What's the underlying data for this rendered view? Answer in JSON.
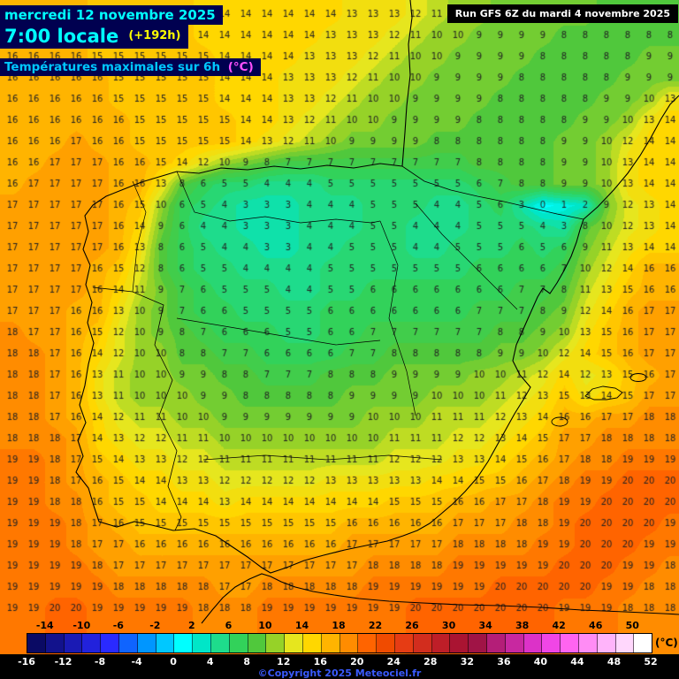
{
  "header": {
    "date": "mercredi 12 novembre 2025",
    "time": "7:00 locale",
    "forecast_offset": "(+192h)",
    "title": "Températures maximales sur 6h",
    "title_unit": "(°C)",
    "run": "Run GFS 6Z du mardi 4 novembre 2025"
  },
  "footer": {
    "copyright": "©Copyright 2025 Meteociel.fr",
    "unit": "(°C)"
  },
  "scale": {
    "min": -16,
    "max": 52,
    "step": 2,
    "top_labels": [
      -14,
      -10,
      -6,
      -2,
      2,
      6,
      10,
      14,
      18,
      22,
      26,
      30,
      34,
      38,
      42,
      46,
      50
    ],
    "bottom_labels": [
      -16,
      -12,
      -8,
      -4,
      0,
      4,
      8,
      12,
      16,
      20,
      24,
      28,
      32,
      36,
      40,
      44,
      48,
      52
    ],
    "colors": [
      "#0a0a64",
      "#12128c",
      "#1a1ab4",
      "#2222dc",
      "#2a2aff",
      "#0f64ff",
      "#0096ff",
      "#00c8ff",
      "#00ffff",
      "#00e6c8",
      "#1edc8c",
      "#32d25a",
      "#50c83c",
      "#96d228",
      "#e6e61e",
      "#ffd700",
      "#ffb400",
      "#ff8c00",
      "#ff6400",
      "#f04b00",
      "#e63c14",
      "#d22d1e",
      "#be1e28",
      "#aa1432",
      "#a01446",
      "#b41e78",
      "#c828a0",
      "#dc32c8",
      "#f046e6",
      "#ff64f0",
      "#ff8cf5",
      "#ffb4fa",
      "#ffd7fc",
      "#ffffff"
    ]
  },
  "chart_data": {
    "type": "heatmap",
    "title": "Températures maximales sur 6h (°C)",
    "unit": "°C",
    "grid_origin": [
      14,
      16
    ],
    "grid_spacing": [
      24,
      24
    ],
    "number_color": "#222222",
    "values": [
      [
        16,
        16,
        16,
        16,
        15,
        15,
        15,
        15,
        15,
        14,
        14,
        14,
        14,
        14,
        14,
        14,
        13,
        13,
        13,
        12,
        11,
        10,
        10,
        9,
        9,
        9,
        9,
        9,
        8,
        8,
        8,
        8
      ],
      [
        16,
        16,
        16,
        16,
        15,
        15,
        15,
        15,
        15,
        14,
        14,
        14,
        14,
        14,
        14,
        13,
        13,
        13,
        12,
        11,
        10,
        10,
        9,
        9,
        9,
        9,
        8,
        8,
        8,
        8,
        8,
        8
      ],
      [
        16,
        16,
        16,
        16,
        15,
        15,
        15,
        15,
        15,
        15,
        14,
        14,
        14,
        14,
        13,
        13,
        13,
        12,
        11,
        10,
        10,
        9,
        9,
        9,
        9,
        8,
        8,
        8,
        8,
        8,
        9,
        9
      ],
      [
        16,
        16,
        16,
        16,
        16,
        15,
        15,
        15,
        15,
        15,
        14,
        14,
        14,
        13,
        13,
        13,
        12,
        11,
        10,
        10,
        9,
        9,
        9,
        9,
        8,
        8,
        8,
        8,
        8,
        9,
        9,
        9
      ],
      [
        16,
        16,
        16,
        16,
        16,
        15,
        15,
        15,
        15,
        15,
        14,
        14,
        14,
        13,
        13,
        12,
        11,
        10,
        10,
        9,
        9,
        9,
        9,
        8,
        8,
        8,
        8,
        8,
        9,
        9,
        10,
        13
      ],
      [
        16,
        16,
        16,
        16,
        16,
        16,
        15,
        15,
        15,
        15,
        15,
        14,
        14,
        13,
        12,
        11,
        10,
        10,
        9,
        9,
        9,
        9,
        8,
        8,
        8,
        8,
        8,
        9,
        9,
        10,
        13,
        14
      ],
      [
        16,
        16,
        16,
        17,
        16,
        16,
        15,
        15,
        15,
        15,
        15,
        14,
        13,
        12,
        11,
        10,
        9,
        9,
        9,
        9,
        8,
        8,
        8,
        8,
        8,
        8,
        9,
        9,
        10,
        12,
        14,
        14
      ],
      [
        16,
        16,
        17,
        17,
        17,
        16,
        16,
        15,
        14,
        12,
        10,
        9,
        8,
        7,
        7,
        7,
        7,
        7,
        7,
        7,
        7,
        7,
        8,
        8,
        8,
        8,
        9,
        9,
        10,
        13,
        14,
        14
      ],
      [
        16,
        17,
        17,
        17,
        17,
        16,
        16,
        13,
        8,
        6,
        5,
        5,
        4,
        4,
        4,
        5,
        5,
        5,
        5,
        5,
        5,
        5,
        6,
        7,
        8,
        8,
        9,
        9,
        10,
        13,
        14,
        14
      ],
      [
        17,
        17,
        17,
        17,
        17,
        16,
        15,
        10,
        6,
        5,
        4,
        3,
        3,
        3,
        4,
        4,
        4,
        5,
        5,
        5,
        4,
        4,
        5,
        6,
        3,
        0,
        1,
        2,
        9,
        12,
        13,
        14
      ],
      [
        17,
        17,
        17,
        17,
        17,
        16,
        14,
        9,
        6,
        4,
        4,
        3,
        3,
        3,
        4,
        4,
        4,
        5,
        5,
        4,
        4,
        4,
        5,
        5,
        5,
        4,
        3,
        8,
        10,
        12,
        13,
        14
      ],
      [
        17,
        17,
        17,
        17,
        17,
        16,
        13,
        8,
        6,
        5,
        4,
        4,
        3,
        3,
        4,
        4,
        5,
        5,
        5,
        4,
        4,
        5,
        5,
        5,
        6,
        5,
        6,
        9,
        11,
        13,
        14,
        14
      ],
      [
        17,
        17,
        17,
        17,
        16,
        15,
        12,
        8,
        6,
        5,
        5,
        4,
        4,
        4,
        4,
        5,
        5,
        5,
        5,
        5,
        5,
        5,
        6,
        6,
        6,
        6,
        7,
        10,
        12,
        14,
        16,
        16
      ],
      [
        17,
        17,
        17,
        17,
        16,
        14,
        11,
        9,
        7,
        6,
        5,
        5,
        5,
        4,
        4,
        5,
        5,
        6,
        6,
        6,
        6,
        6,
        6,
        6,
        7,
        7,
        8,
        11,
        13,
        15,
        16,
        16
      ],
      [
        17,
        17,
        17,
        16,
        16,
        13,
        10,
        9,
        7,
        6,
        6,
        5,
        5,
        5,
        5,
        6,
        6,
        6,
        6,
        6,
        6,
        6,
        7,
        7,
        7,
        8,
        9,
        12,
        14,
        16,
        17,
        17
      ],
      [
        18,
        17,
        17,
        16,
        15,
        12,
        10,
        9,
        8,
        7,
        6,
        6,
        6,
        5,
        5,
        6,
        6,
        7,
        7,
        7,
        7,
        7,
        7,
        8,
        8,
        9,
        10,
        13,
        15,
        16,
        17,
        17
      ],
      [
        18,
        18,
        17,
        16,
        14,
        12,
        10,
        10,
        8,
        8,
        7,
        7,
        6,
        6,
        6,
        6,
        7,
        7,
        8,
        8,
        8,
        8,
        8,
        9,
        9,
        10,
        12,
        14,
        15,
        16,
        17,
        17
      ],
      [
        18,
        18,
        17,
        16,
        13,
        11,
        10,
        10,
        9,
        9,
        8,
        8,
        7,
        7,
        7,
        8,
        8,
        8,
        9,
        9,
        9,
        9,
        10,
        10,
        11,
        12,
        14,
        12,
        13,
        15,
        16,
        17
      ],
      [
        18,
        18,
        17,
        16,
        13,
        11,
        10,
        10,
        10,
        9,
        9,
        8,
        8,
        8,
        8,
        8,
        9,
        9,
        9,
        9,
        10,
        10,
        10,
        11,
        12,
        13,
        15,
        13,
        14,
        15,
        17,
        17
      ],
      [
        18,
        18,
        17,
        16,
        14,
        12,
        11,
        11,
        10,
        10,
        9,
        9,
        9,
        9,
        9,
        9,
        9,
        10,
        10,
        10,
        11,
        11,
        11,
        12,
        13,
        14,
        16,
        16,
        17,
        17,
        18,
        18
      ],
      [
        18,
        18,
        18,
        17,
        14,
        13,
        12,
        12,
        11,
        11,
        10,
        10,
        10,
        10,
        10,
        10,
        10,
        10,
        11,
        11,
        11,
        12,
        12,
        13,
        14,
        15,
        17,
        17,
        18,
        18,
        18,
        18
      ],
      [
        19,
        19,
        18,
        17,
        15,
        14,
        13,
        13,
        12,
        12,
        11,
        11,
        11,
        11,
        11,
        11,
        11,
        11,
        12,
        12,
        12,
        13,
        13,
        14,
        15,
        16,
        17,
        18,
        18,
        19,
        19,
        19
      ],
      [
        19,
        19,
        18,
        17,
        16,
        15,
        14,
        14,
        13,
        13,
        12,
        12,
        12,
        12,
        12,
        13,
        13,
        13,
        13,
        13,
        14,
        14,
        15,
        15,
        16,
        17,
        18,
        19,
        19,
        20,
        20,
        20
      ],
      [
        19,
        19,
        18,
        18,
        16,
        15,
        15,
        14,
        14,
        14,
        13,
        14,
        14,
        14,
        14,
        14,
        14,
        14,
        15,
        15,
        15,
        16,
        16,
        17,
        17,
        18,
        19,
        19,
        20,
        20,
        20,
        20
      ],
      [
        19,
        19,
        19,
        18,
        17,
        16,
        15,
        15,
        15,
        15,
        15,
        15,
        15,
        15,
        15,
        15,
        16,
        16,
        16,
        16,
        16,
        17,
        17,
        17,
        18,
        18,
        19,
        20,
        20,
        20,
        20,
        19
      ],
      [
        19,
        19,
        19,
        18,
        17,
        17,
        16,
        16,
        16,
        16,
        16,
        16,
        16,
        16,
        16,
        16,
        17,
        17,
        17,
        17,
        17,
        18,
        18,
        18,
        18,
        19,
        19,
        20,
        20,
        20,
        19,
        19
      ],
      [
        19,
        19,
        19,
        19,
        18,
        17,
        17,
        17,
        17,
        17,
        17,
        17,
        17,
        17,
        17,
        17,
        17,
        18,
        18,
        18,
        18,
        19,
        19,
        19,
        19,
        19,
        20,
        20,
        20,
        19,
        19,
        18
      ],
      [
        19,
        19,
        19,
        19,
        19,
        18,
        18,
        18,
        18,
        18,
        17,
        17,
        18,
        18,
        18,
        18,
        18,
        19,
        19,
        19,
        19,
        19,
        19,
        20,
        20,
        20,
        20,
        20,
        19,
        19,
        18,
        18
      ],
      [
        19,
        19,
        20,
        20,
        19,
        19,
        19,
        19,
        19,
        18,
        18,
        18,
        19,
        19,
        19,
        19,
        19,
        19,
        19,
        20,
        20,
        20,
        20,
        20,
        20,
        20,
        19,
        19,
        19,
        18,
        18,
        18
      ]
    ]
  }
}
